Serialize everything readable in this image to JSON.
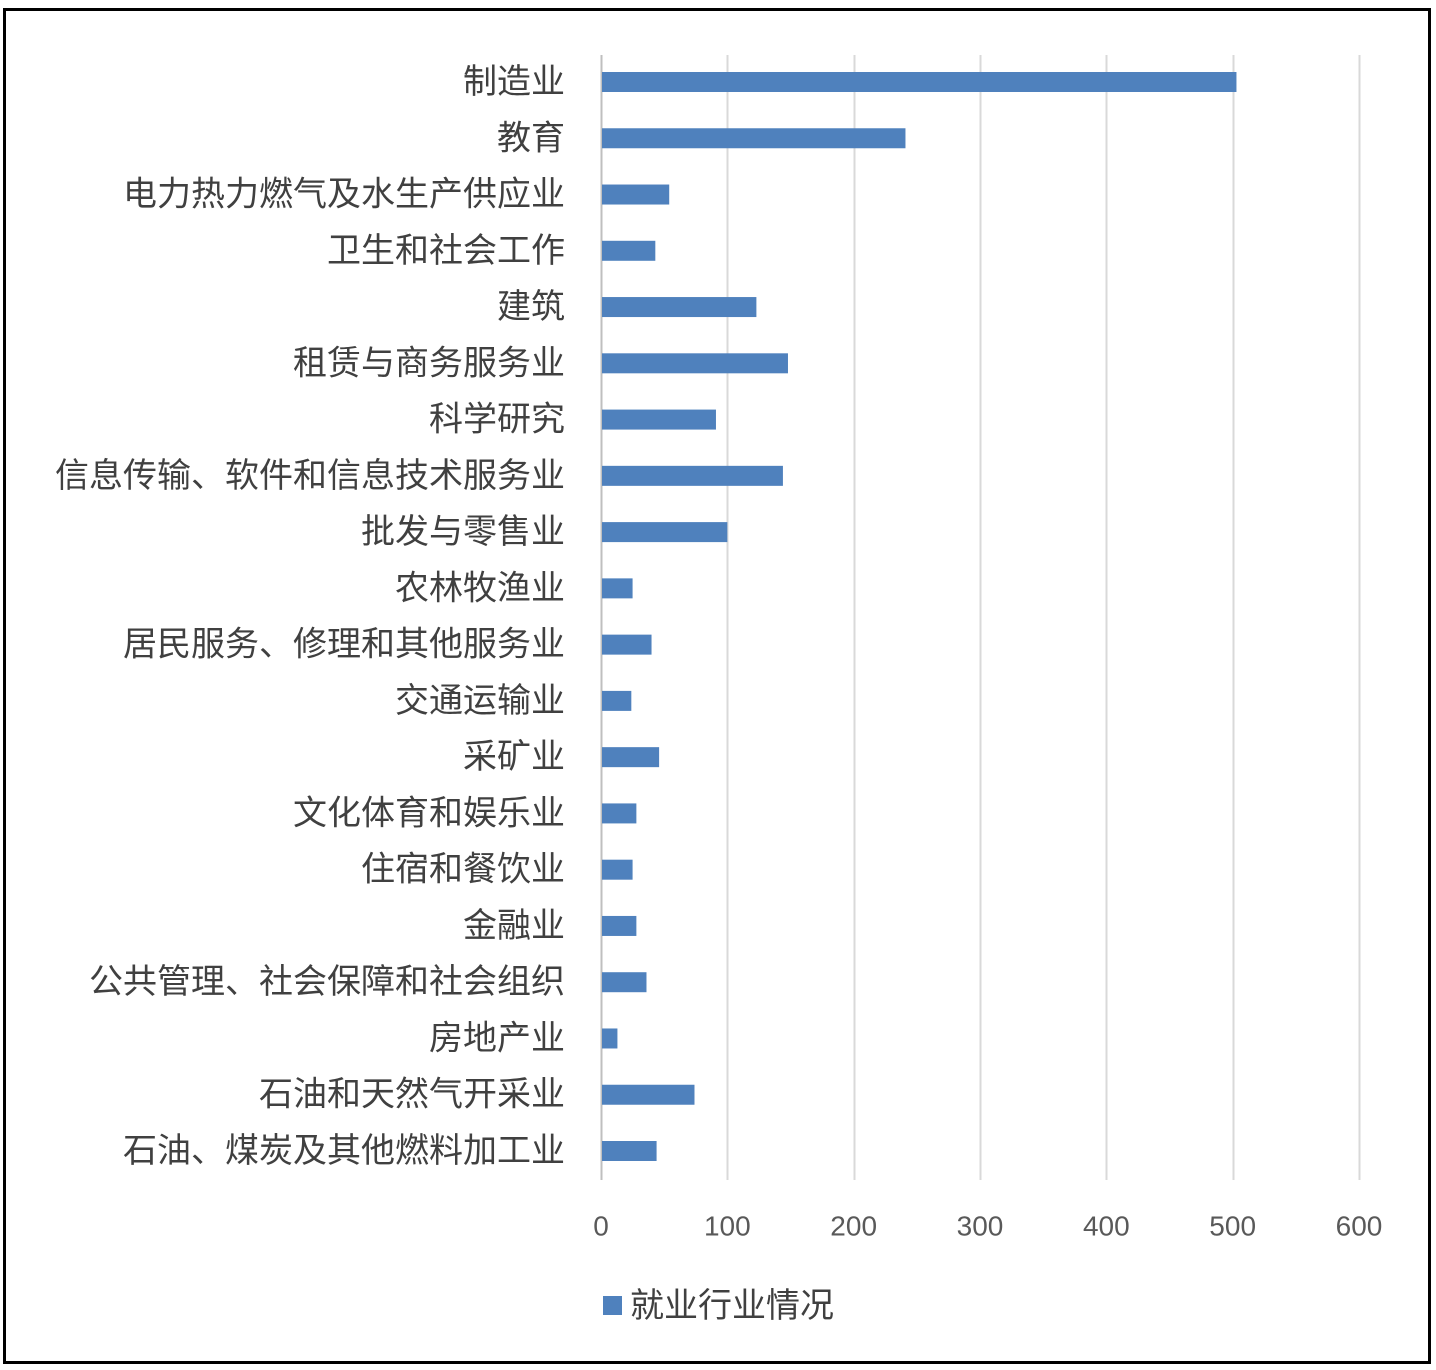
{
  "chart_data": {
    "type": "bar",
    "orientation": "horizontal",
    "categories": [
      "制造业",
      "教育",
      "电力热力燃气及水生产供应业",
      "卫生和社会工作",
      "建筑",
      "租赁与商务服务业",
      "科学研究",
      "信息传输、软件和信息技术服务业",
      "批发与零售业",
      "农林牧渔业",
      "居民服务、修理和其他服务业",
      "交通运输业",
      "采矿业",
      "文化体育和娱乐业",
      "住宿和餐饮业",
      "金融业",
      "公共管理、社会保障和社会组织",
      "房地产业",
      "石油和天然气开采业",
      "石油、煤炭及其他燃料加工业"
    ],
    "series": [
      {
        "name": "就业行业情况",
        "values": [
          503,
          241,
          54,
          43,
          123,
          148,
          91,
          144,
          100,
          25,
          40,
          24,
          46,
          28,
          25,
          28,
          36,
          13,
          74,
          44
        ],
        "color": "#4F81BD"
      }
    ],
    "xlim": [
      0,
      600
    ],
    "x_ticks": [
      0,
      100,
      200,
      300,
      400,
      500,
      600
    ],
    "grid": true,
    "legend_position": "bottom",
    "colors": {
      "gridline": "#D9D9D9",
      "axis_line": "#BFBFBF",
      "label_text": "#404040",
      "tick_text": "#595959",
      "border": "#000000"
    }
  }
}
